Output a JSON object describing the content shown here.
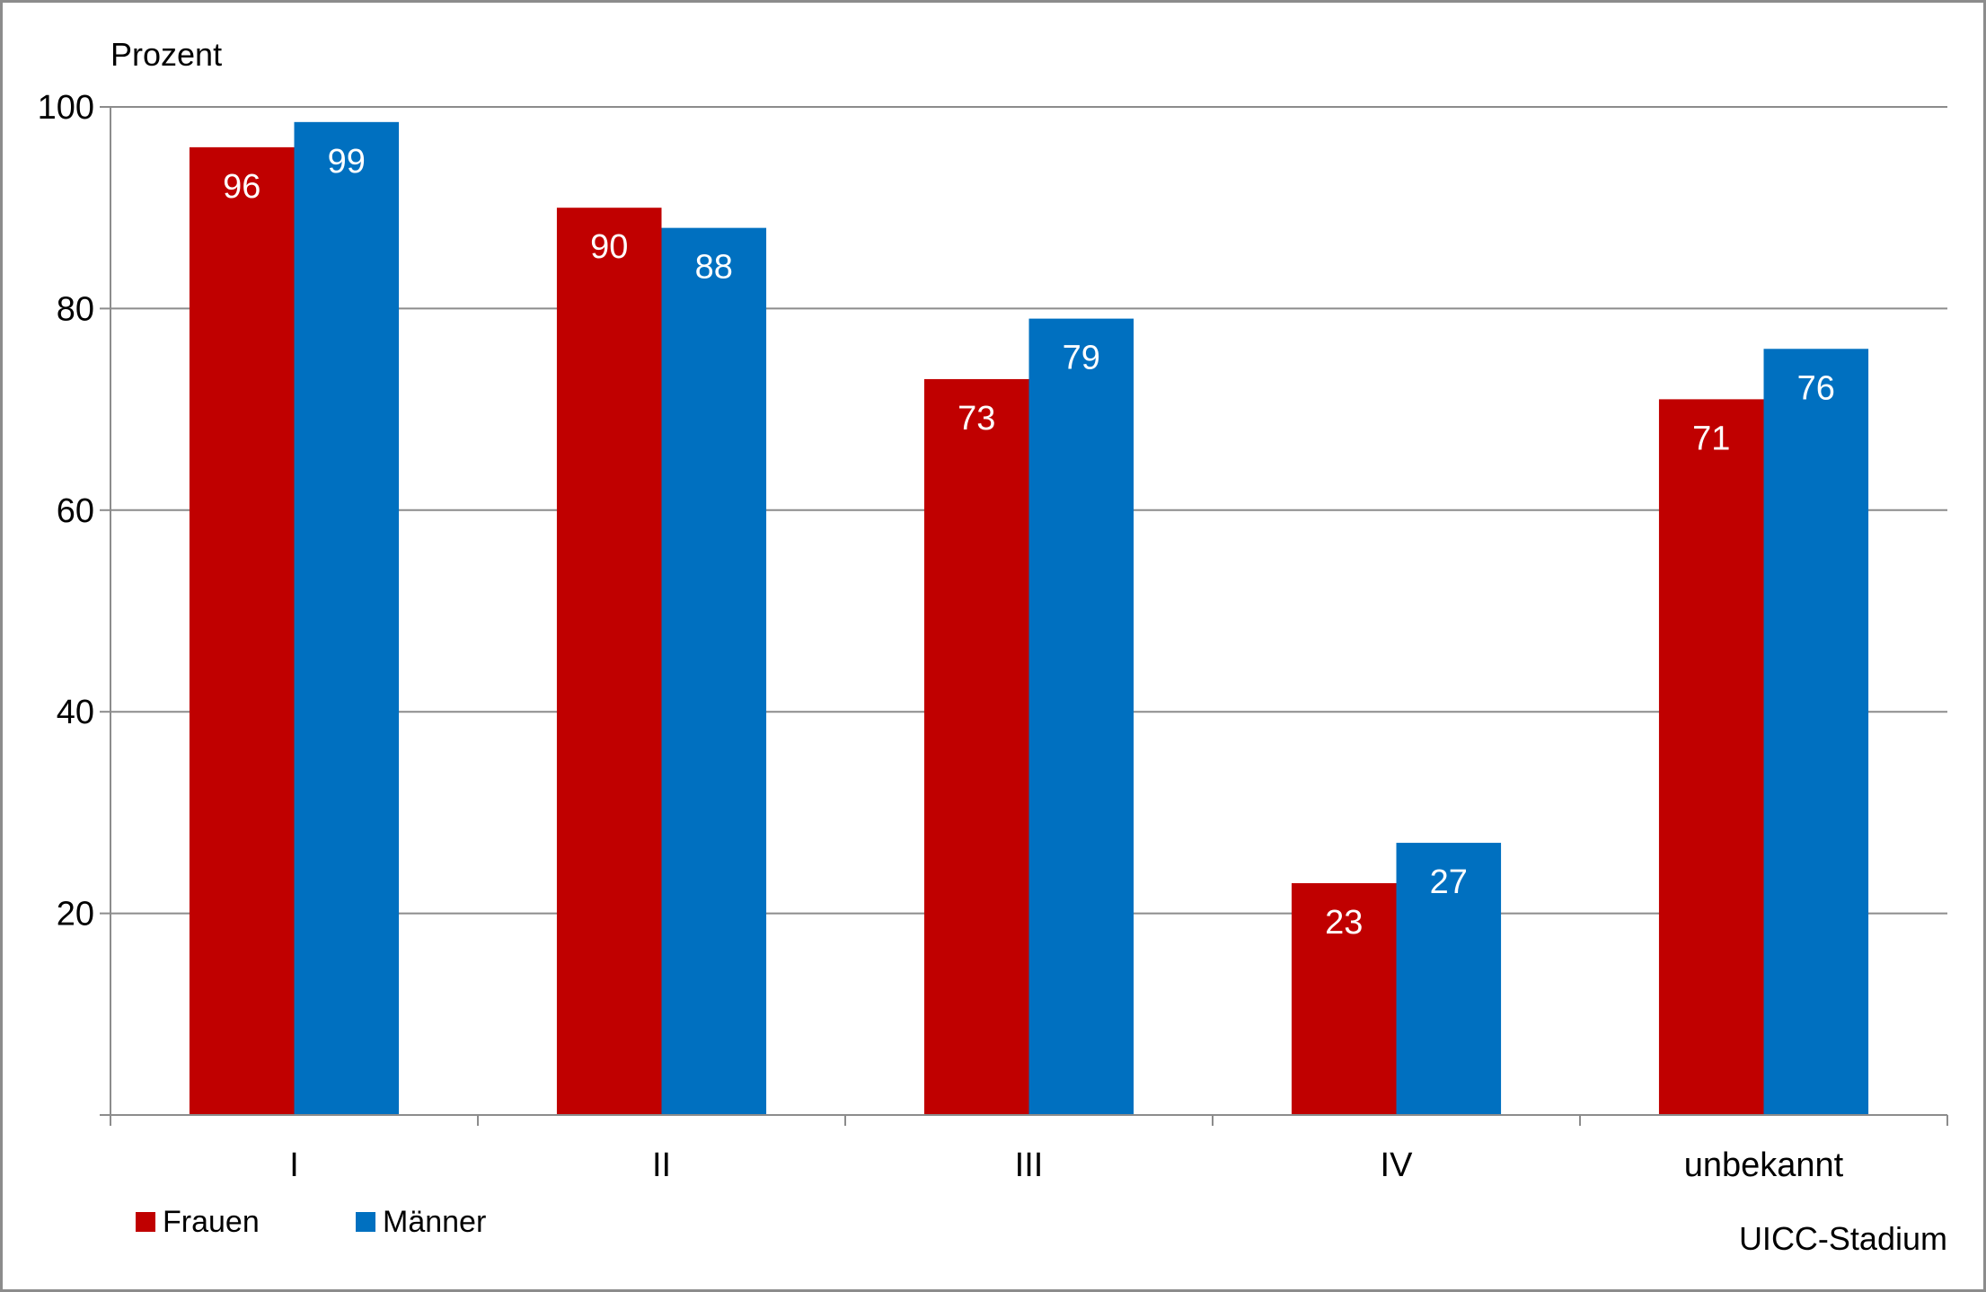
{
  "chart_data": {
    "type": "bar",
    "ylabel": "Prozent",
    "xlabel": "UICC-Stadium",
    "ylim": [
      0,
      100
    ],
    "yticks": [
      20,
      40,
      60,
      80,
      100
    ],
    "grid": true,
    "legend_placement": "bottom-left",
    "categories": [
      "I",
      "II",
      "III",
      "IV",
      "unbekannt"
    ],
    "series": [
      {
        "name": "Frauen",
        "color": "#c00000",
        "values": [
          96,
          90,
          73,
          23,
          71
        ],
        "labels": [
          "96",
          "90",
          "73",
          "23",
          "71"
        ]
      },
      {
        "name": "Männer",
        "color": "#0070c0",
        "values": [
          98.5,
          88,
          79,
          27,
          76
        ],
        "labels": [
          "99",
          "88",
          "79",
          "27",
          "76"
        ]
      }
    ]
  }
}
